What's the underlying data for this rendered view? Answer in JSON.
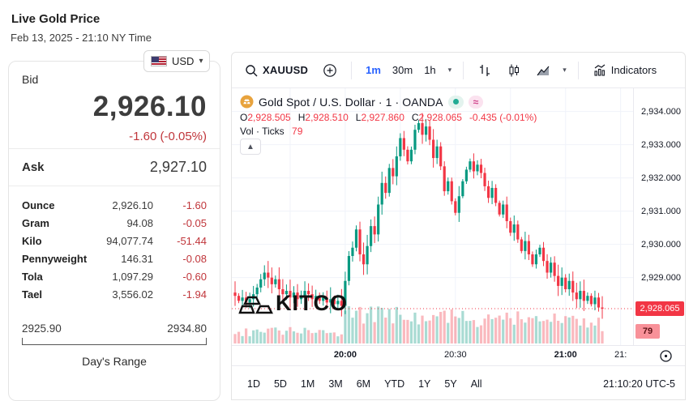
{
  "header": {
    "title": "Live Gold Price",
    "datetime": "Feb 13, 2025 - 21:10 NY Time"
  },
  "currency": {
    "code": "USD"
  },
  "quote": {
    "bid_label": "Bid",
    "bid_value": "2,926.10",
    "bid_change": "-1.60 (-0.05%)",
    "ask_label": "Ask",
    "ask_value": "2,927.10",
    "units": [
      {
        "label": "Ounce",
        "value": "2,926.10",
        "change": "-1.60"
      },
      {
        "label": "Gram",
        "value": "94.08",
        "change": "-0.05"
      },
      {
        "label": "Kilo",
        "value": "94,077.74",
        "change": "-51.44"
      },
      {
        "label": "Pennyweight",
        "value": "146.31",
        "change": "-0.08"
      },
      {
        "label": "Tola",
        "value": "1,097.29",
        "change": "-0.60"
      },
      {
        "label": "Tael",
        "value": "3,556.02",
        "change": "-1.94"
      }
    ],
    "range_low": "2925.90",
    "range_high": "2934.80",
    "range_label": "Day's Range"
  },
  "toolbar": {
    "symbol": "XAUUSD",
    "intervals": [
      {
        "label": "1m",
        "active": true
      },
      {
        "label": "30m",
        "active": false
      },
      {
        "label": "1h",
        "active": false
      }
    ],
    "indicators_label": "Indicators"
  },
  "legend": {
    "title": "Gold Spot / U.S. Dollar · 1 · OANDA",
    "ohlc": [
      {
        "k": "O",
        "v": "2,928.505"
      },
      {
        "k": "H",
        "v": "2,928.510"
      },
      {
        "k": "L",
        "v": "2,927.860"
      },
      {
        "k": "C",
        "v": "2,928.065"
      }
    ],
    "change": "-0.435 (-0.01%)",
    "vol_label": "Vol · Ticks",
    "vol_value": "79"
  },
  "watermark": "KITCO",
  "chart_data": {
    "type": "candlestick",
    "symbol": "XAUUSD",
    "interval": "1m",
    "source": "OANDA",
    "start_time": "19:30",
    "end_time": "21:10",
    "minutes_per_candle": 1,
    "first_open": 2928.55,
    "closes": [
      2928.45,
      2928.3,
      2928.4,
      2928.25,
      2928.35,
      2928.5,
      2928.7,
      2928.95,
      2929.15,
      2929.0,
      2928.8,
      2928.95,
      2928.65,
      2928.5,
      2928.6,
      2928.4,
      2928.55,
      2928.35,
      2928.45,
      2928.6,
      2928.5,
      2928.35,
      2928.45,
      2928.3,
      2928.4,
      2928.25,
      2928.35,
      2928.2,
      2928.3,
      2928.15,
      2928.9,
      2929.65,
      2929.9,
      2930.45,
      2929.7,
      2929.4,
      2929.95,
      2930.55,
      2930.3,
      2931.2,
      2931.85,
      2931.55,
      2932.3,
      2932.05,
      2932.65,
      2933.2,
      2932.85,
      2932.5,
      2932.85,
      2933.45,
      2933.65,
      2933.3,
      2933.55,
      2933.15,
      2932.6,
      2932.95,
      2932.35,
      2931.6,
      2931.9,
      2931.3,
      2930.95,
      2931.45,
      2931.9,
      2932.25,
      2932.5,
      2932.2,
      2932.4,
      2932.15,
      2931.75,
      2931.4,
      2931.7,
      2931.25,
      2930.9,
      2931.2,
      2930.7,
      2930.35,
      2930.6,
      2930.15,
      2929.8,
      2930.1,
      2929.7,
      2929.4,
      2929.7,
      2929.9,
      2929.5,
      2929.15,
      2929.45,
      2929.05,
      2928.75,
      2929.0,
      2928.65,
      2928.9,
      2928.55,
      2928.35,
      2928.6,
      2928.3,
      2928.45,
      2928.2,
      2928.4,
      2928.1,
      2928.065
    ],
    "last_price": 2928.065,
    "last_price_label": "2,928.065",
    "volume_ticks": 79,
    "volume_ticks_label": "79",
    "ylim": [
      2927.4,
      2934.6
    ],
    "y_ticks": [
      {
        "value": 2934,
        "label": "2,934.000"
      },
      {
        "value": 2933,
        "label": "2,933.000"
      },
      {
        "value": 2932,
        "label": "2,932.000"
      },
      {
        "value": 2931,
        "label": "2,931.000"
      },
      {
        "value": 2930,
        "label": "2,930.000"
      },
      {
        "value": 2929,
        "label": "2,929.000"
      }
    ],
    "x_ticks": [
      {
        "minute": 30,
        "label": "20:00"
      },
      {
        "minute": 60,
        "label": "20:30"
      },
      {
        "minute": 90,
        "label": "21:00"
      },
      {
        "minute": 105,
        "label": "21:"
      }
    ],
    "grid_minutes": 15,
    "legend_position": "top-left",
    "colors": {
      "up": "#089981",
      "down": "#F23645",
      "vol_up": "rgba(8,153,129,0.35)",
      "vol_down": "rgba(242,54,69,0.35)",
      "grid": "#f0f3fa",
      "last_price_line": "#F23645",
      "accent_blue": "#2962FF",
      "kitco_red": "#c0353a"
    }
  },
  "footer": {
    "ranges": [
      "1D",
      "5D",
      "1M",
      "3M",
      "6M",
      "YTD",
      "1Y",
      "5Y",
      "All"
    ],
    "clock": "21:10:20 UTC-5"
  }
}
